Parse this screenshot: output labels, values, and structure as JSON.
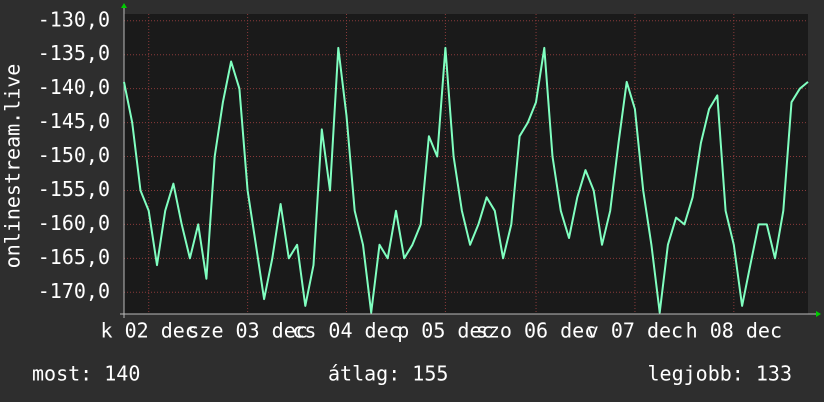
{
  "chart_data": {
    "type": "line",
    "y_label": "onlinestream.live",
    "categories": [
      null,
      null,
      null,
      "k 02 dec",
      null,
      null,
      null,
      null,
      null,
      null,
      null,
      null,
      null,
      null,
      null,
      "sze 03 dec",
      null,
      null,
      null,
      null,
      null,
      null,
      null,
      null,
      null,
      null,
      null,
      "cs 04 dec",
      null,
      null,
      null,
      null,
      null,
      null,
      null,
      null,
      null,
      null,
      null,
      "p 05 dec",
      null,
      null,
      null,
      null,
      null,
      null,
      null,
      null,
      null,
      null,
      "szo 06 dec",
      null,
      null,
      null,
      null,
      null,
      null,
      null,
      null,
      null,
      null,
      null,
      "v 07 dec",
      null,
      null,
      null,
      null,
      null,
      null,
      null,
      null,
      null,
      null,
      null,
      "h 08 dec",
      null,
      null,
      null,
      null,
      null,
      null,
      null,
      null,
      null
    ],
    "series": [
      {
        "color": "#80ffc0",
        "values": [
          -139,
          -145,
          -155,
          -158,
          -166,
          -158,
          -154,
          -160,
          -165,
          -160,
          -168,
          -150,
          -142,
          -136,
          -140,
          -155,
          -163,
          -171,
          -165,
          -157,
          -165,
          -163,
          -172,
          -166,
          -146,
          -155,
          -134,
          -144,
          -158,
          -163,
          -173,
          -163,
          -165,
          -158,
          -165,
          -163,
          -160,
          -147,
          -150,
          -134,
          -150,
          -158,
          -163,
          -160,
          -156,
          -158,
          -165,
          -160,
          -147,
          -145,
          -142,
          -134,
          -150,
          -158,
          -162,
          -156,
          -152,
          -155,
          -163,
          -158,
          -148,
          -139,
          -143,
          -155,
          -163,
          -173,
          -163,
          -159,
          -160,
          -156,
          -148,
          -143,
          -141,
          -158,
          -163,
          -172,
          -166,
          -160,
          -160,
          -165,
          -158,
          -142,
          -140,
          -139
        ]
      }
    ],
    "ylim": [
      -173.2,
      -129.0
    ],
    "yticks": [
      {
        "value": -130,
        "label": "-130,0"
      },
      {
        "value": -135,
        "label": "-135,0"
      },
      {
        "value": -140,
        "label": "-140,0"
      },
      {
        "value": -145,
        "label": "-145,0"
      },
      {
        "value": -150,
        "label": "-150,0"
      },
      {
        "value": -155,
        "label": "-155,0"
      },
      {
        "value": -160,
        "label": "-160,0"
      },
      {
        "value": -165,
        "label": "-165,0"
      },
      {
        "value": -170,
        "label": "-170,0"
      }
    ],
    "grid": true
  },
  "footer": [
    "most: 140",
    "átlag: 155",
    "legjobb: 133"
  ]
}
